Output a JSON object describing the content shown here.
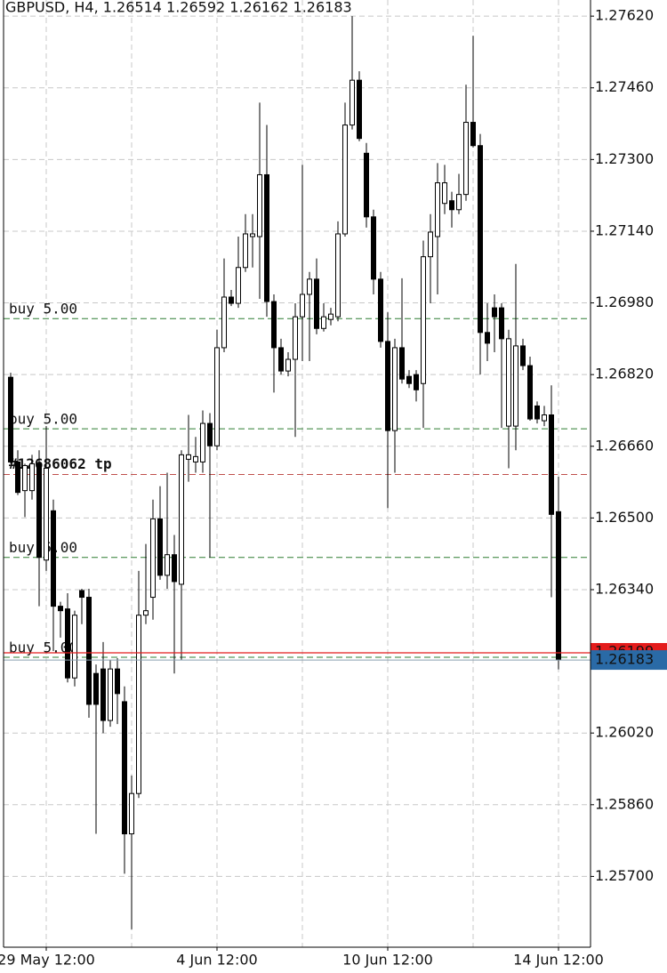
{
  "chart_data": {
    "type": "candlestick",
    "title": "GBPUSD, H4, 1.26514 1.26592 1.26162 1.26183",
    "categories": [
      null,
      null,
      null,
      null,
      null,
      "29 May 12:00",
      null,
      null,
      null,
      null,
      null,
      null,
      null,
      null,
      null,
      null,
      null,
      null,
      null,
      null,
      null,
      null,
      null,
      null,
      null,
      null,
      null,
      null,
      null,
      "4 Jun 12:00",
      null,
      null,
      null,
      null,
      null,
      null,
      null,
      null,
      null,
      null,
      null,
      null,
      null,
      null,
      null,
      null,
      null,
      null,
      null,
      null,
      null,
      null,
      null,
      "10 Jun 12:00",
      null,
      null,
      null,
      null,
      null,
      null,
      null,
      null,
      null,
      null,
      null,
      null,
      null,
      null,
      null,
      null,
      null,
      null,
      null,
      null,
      null,
      null,
      null,
      "14 Jun 12:00"
    ],
    "open": [
      1.26814,
      1.26625,
      1.26561,
      1.26561,
      1.26621,
      1.26406,
      1.26516,
      1.26303,
      1.26297,
      1.26143,
      1.26338,
      1.26323,
      1.26153,
      1.26163,
      1.26048,
      1.26163,
      1.2609,
      1.25795,
      1.25885,
      1.26283,
      1.26323,
      1.26498,
      1.26372,
      1.26418,
      1.26352,
      1.26631,
      1.26625,
      1.26625,
      1.26711,
      1.26661,
      1.2688,
      1.26993,
      1.26979,
      1.27059,
      1.27128,
      1.27128,
      1.27266,
      1.26983,
      1.2688,
      1.26828,
      1.26854,
      1.26949,
      1.26999,
      1.27033,
      1.26923,
      1.26943,
      1.26949,
      1.27134,
      1.27377,
      1.27477,
      1.27314,
      1.27172,
      1.27033,
      1.26894,
      1.26695,
      1.2688,
      1.26816,
      1.2682,
      1.268,
      1.27083,
      1.27128,
      1.27202,
      1.27208,
      1.27188,
      1.27222,
      1.27383,
      1.27331,
      1.26914,
      1.26969,
      1.26969,
      1.26705,
      1.26705,
      1.26884,
      1.2684,
      1.2675,
      1.26717,
      1.2673,
      1.26514
    ],
    "high": [
      1.26824,
      1.26651,
      1.26621,
      1.26641,
      1.26651,
      1.26705,
      1.26541,
      1.26313,
      1.26332,
      1.26293,
      1.26342,
      1.26342,
      1.26173,
      1.26223,
      1.26183,
      1.26187,
      1.26124,
      1.25925,
      1.26382,
      1.26442,
      1.26541,
      1.26571,
      1.26601,
      1.26462,
      1.26651,
      1.2673,
      1.26681,
      1.2674,
      1.26734,
      1.2692,
      1.27079,
      1.27009,
      1.27128,
      1.27178,
      1.27178,
      1.27427,
      1.27377,
      1.26999,
      1.269,
      1.2687,
      1.26979,
      1.27288,
      1.27049,
      1.27079,
      1.26979,
      1.26969,
      1.27162,
      1.27427,
      1.2762,
      1.27497,
      1.27337,
      1.27188,
      1.27049,
      1.26959,
      1.269,
      1.27035,
      1.2683,
      1.2683,
      1.27119,
      1.27178,
      1.27292,
      1.27288,
      1.27228,
      1.27268,
      1.27467,
      1.27576,
      1.27357,
      1.26979,
      1.26999,
      1.26979,
      1.2692,
      1.27067,
      1.269,
      1.2686,
      1.2676,
      1.2675,
      1.26796,
      1.26592
    ],
    "low": [
      1.26621,
      1.26551,
      1.26502,
      1.26541,
      1.26303,
      1.26382,
      1.26203,
      1.26233,
      1.26133,
      1.26124,
      1.26263,
      1.26054,
      1.25795,
      1.2602,
      1.26034,
      1.2604,
      1.25706,
      1.25582,
      1.25875,
      1.26263,
      1.26273,
      1.26362,
      1.26342,
      1.26153,
      1.26183,
      1.26581,
      1.26601,
      1.26601,
      1.26412,
      1.26651,
      1.2687,
      1.26973,
      1.26969,
      1.27049,
      1.27059,
      1.26989,
      1.26949,
      1.2678,
      1.2682,
      1.26816,
      1.26681,
      1.2685,
      1.2685,
      1.2691,
      1.26916,
      1.2693,
      1.26939,
      1.27128,
      1.27367,
      1.27341,
      1.27148,
      1.26999,
      1.2688,
      1.26522,
      1.26601,
      1.268,
      1.2679,
      1.2676,
      1.26701,
      1.26979,
      1.26999,
      1.27178,
      1.27148,
      1.27178,
      1.27208,
      1.27327,
      1.2682,
      1.2685,
      1.2687,
      1.26701,
      1.26611,
      1.26651,
      1.2683,
      1.26717,
      1.26711,
      1.26705,
      1.26323,
      1.26162
    ],
    "close": [
      1.26625,
      1.26557,
      1.26617,
      1.26621,
      1.26412,
      1.26611,
      1.26303,
      1.26293,
      1.26143,
      1.26283,
      1.26323,
      1.26084,
      1.26084,
      1.26048,
      1.26163,
      1.26108,
      1.25795,
      1.25885,
      1.26283,
      1.26293,
      1.26498,
      1.26372,
      1.26418,
      1.26358,
      1.26641,
      1.26641,
      1.26637,
      1.26711,
      1.26661,
      1.2688,
      1.26993,
      1.26979,
      1.27059,
      1.27134,
      1.27134,
      1.27266,
      1.26983,
      1.2688,
      1.26828,
      1.26854,
      1.26949,
      1.26999,
      1.27033,
      1.26923,
      1.26949,
      1.26955,
      1.27134,
      1.27377,
      1.27477,
      1.27347,
      1.27172,
      1.27033,
      1.26894,
      1.26695,
      1.2688,
      1.2681,
      1.268,
      1.26786,
      1.27083,
      1.27138,
      1.27248,
      1.27248,
      1.27188,
      1.27222,
      1.27383,
      1.27331,
      1.26914,
      1.2689,
      1.26949,
      1.269,
      1.269,
      1.26884,
      1.2684,
      1.26721,
      1.26721,
      1.2673,
      1.26508,
      1.26183
    ],
    "up_color": "#ffffff",
    "down_color": "#000000",
    "ylim": [
      1.25542,
      1.27656
    ],
    "yticks": [
      {
        "value": 1.2762,
        "label": "1.27620"
      },
      {
        "value": 1.2746,
        "label": "1.27460"
      },
      {
        "value": 1.273,
        "label": "1.27300"
      },
      {
        "value": 1.2714,
        "label": "1.27140"
      },
      {
        "value": 1.2698,
        "label": "1.26980"
      },
      {
        "value": 1.2682,
        "label": "1.26820"
      },
      {
        "value": 1.2666,
        "label": "1.26660"
      },
      {
        "value": 1.265,
        "label": "1.26500"
      },
      {
        "value": 1.2634,
        "label": "1.26340"
      },
      {
        "value": 1.2602,
        "label": "1.26020"
      },
      {
        "value": 1.2586,
        "label": "1.25860"
      },
      {
        "value": 1.257,
        "label": "1.25700"
      }
    ],
    "grid": true,
    "order_lines": [
      {
        "label": "buy 5.00",
        "value": 1.26945,
        "color": "#2e7d32"
      },
      {
        "label": "buy 5.00",
        "value": 1.26699,
        "color": "#2e7d32"
      },
      {
        "label": "buy 5.00",
        "value": 1.26412,
        "color": "#2e7d32"
      },
      {
        "label": "buy 5.00",
        "value": 1.26189,
        "color": "#2e7d32"
      }
    ],
    "tp_line": {
      "label": "#12686062 tp",
      "value": 1.26597,
      "color": "#c0504d"
    },
    "ask": {
      "value": 1.26199,
      "color": "#e41c1c"
    },
    "bid": {
      "value": 1.26183,
      "color": "#2a6aa6"
    }
  }
}
